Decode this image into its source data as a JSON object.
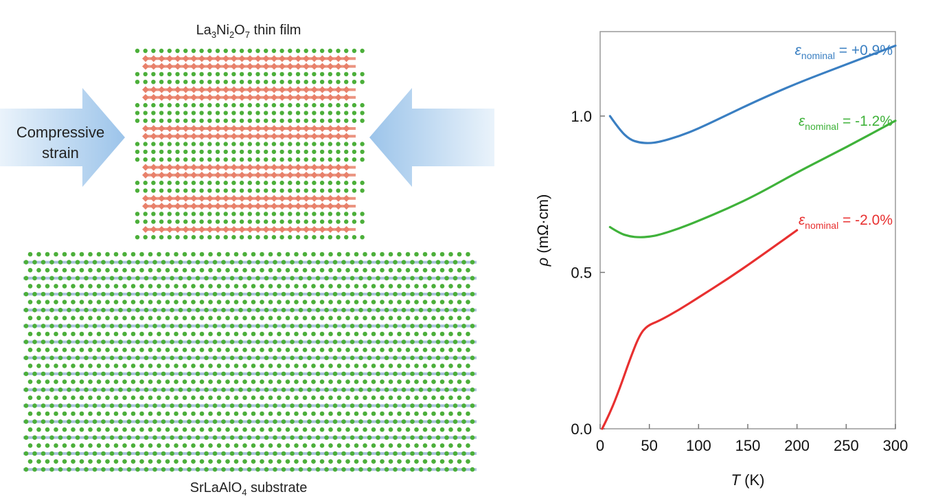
{
  "schematic": {
    "film_label_pre": "La",
    "film_label_sub1": "3",
    "film_label_mid": "Ni",
    "film_label_sub2": "2",
    "film_label_mid2": "O",
    "film_label_sub3": "7",
    "film_label_post": " thin film",
    "arrow_line1": "Compressive",
    "arrow_line2": "strain",
    "substrate_pre": "SrLaAlO",
    "substrate_sub": "4",
    "substrate_post": " substrate",
    "colors": {
      "green_atom": "#4caf3a",
      "film_chain": "#e8816b",
      "substrate_chain": "#9ab6d6",
      "arrow": "#b9d4ee"
    }
  },
  "chart_data": {
    "type": "line",
    "xlabel_italic": "T",
    "xlabel_rest": " (K)",
    "ylabel_italic": "ρ",
    "ylabel_rest": " (mΩ·cm)",
    "xlim": [
      0,
      300
    ],
    "ylim": [
      0,
      1.27
    ],
    "xticks": [
      0,
      50,
      100,
      150,
      200,
      250,
      300
    ],
    "yticks": [
      0.0,
      0.5,
      1.0
    ],
    "xtick_labels": [
      "0",
      "50",
      "100",
      "150",
      "200",
      "250",
      "300"
    ],
    "ytick_labels": [
      "0.0",
      "0.5",
      "1.0"
    ],
    "series": [
      {
        "label_eps": "ε",
        "label_sub": "nominal",
        "label_val": " = +0.9%",
        "color": "#3a7fc2",
        "x": [
          10,
          20,
          30,
          40,
          50,
          60,
          80,
          100,
          130,
          160,
          200,
          250,
          300
        ],
        "y": [
          1.0,
          0.955,
          0.925,
          0.915,
          0.913,
          0.917,
          0.935,
          0.96,
          1.005,
          1.05,
          1.105,
          1.165,
          1.225
        ]
      },
      {
        "label_eps": "ε",
        "label_sub": "nominal",
        "label_val": " = -1.2%",
        "color": "#3fb23a",
        "x": [
          10,
          20,
          30,
          40,
          50,
          60,
          80,
          100,
          130,
          160,
          200,
          250,
          300
        ],
        "y": [
          0.645,
          0.625,
          0.615,
          0.612,
          0.614,
          0.62,
          0.64,
          0.665,
          0.705,
          0.75,
          0.82,
          0.9,
          0.985
        ]
      },
      {
        "label_eps": "ε",
        "label_sub": "nominal",
        "label_val": " = -2.0%",
        "color": "#e83030",
        "x": [
          2,
          10,
          20,
          30,
          40,
          48,
          60,
          80,
          100,
          130,
          160,
          200
        ],
        "y": [
          0.0,
          0.05,
          0.13,
          0.22,
          0.3,
          0.33,
          0.345,
          0.38,
          0.42,
          0.48,
          0.545,
          0.635
        ]
      }
    ]
  }
}
